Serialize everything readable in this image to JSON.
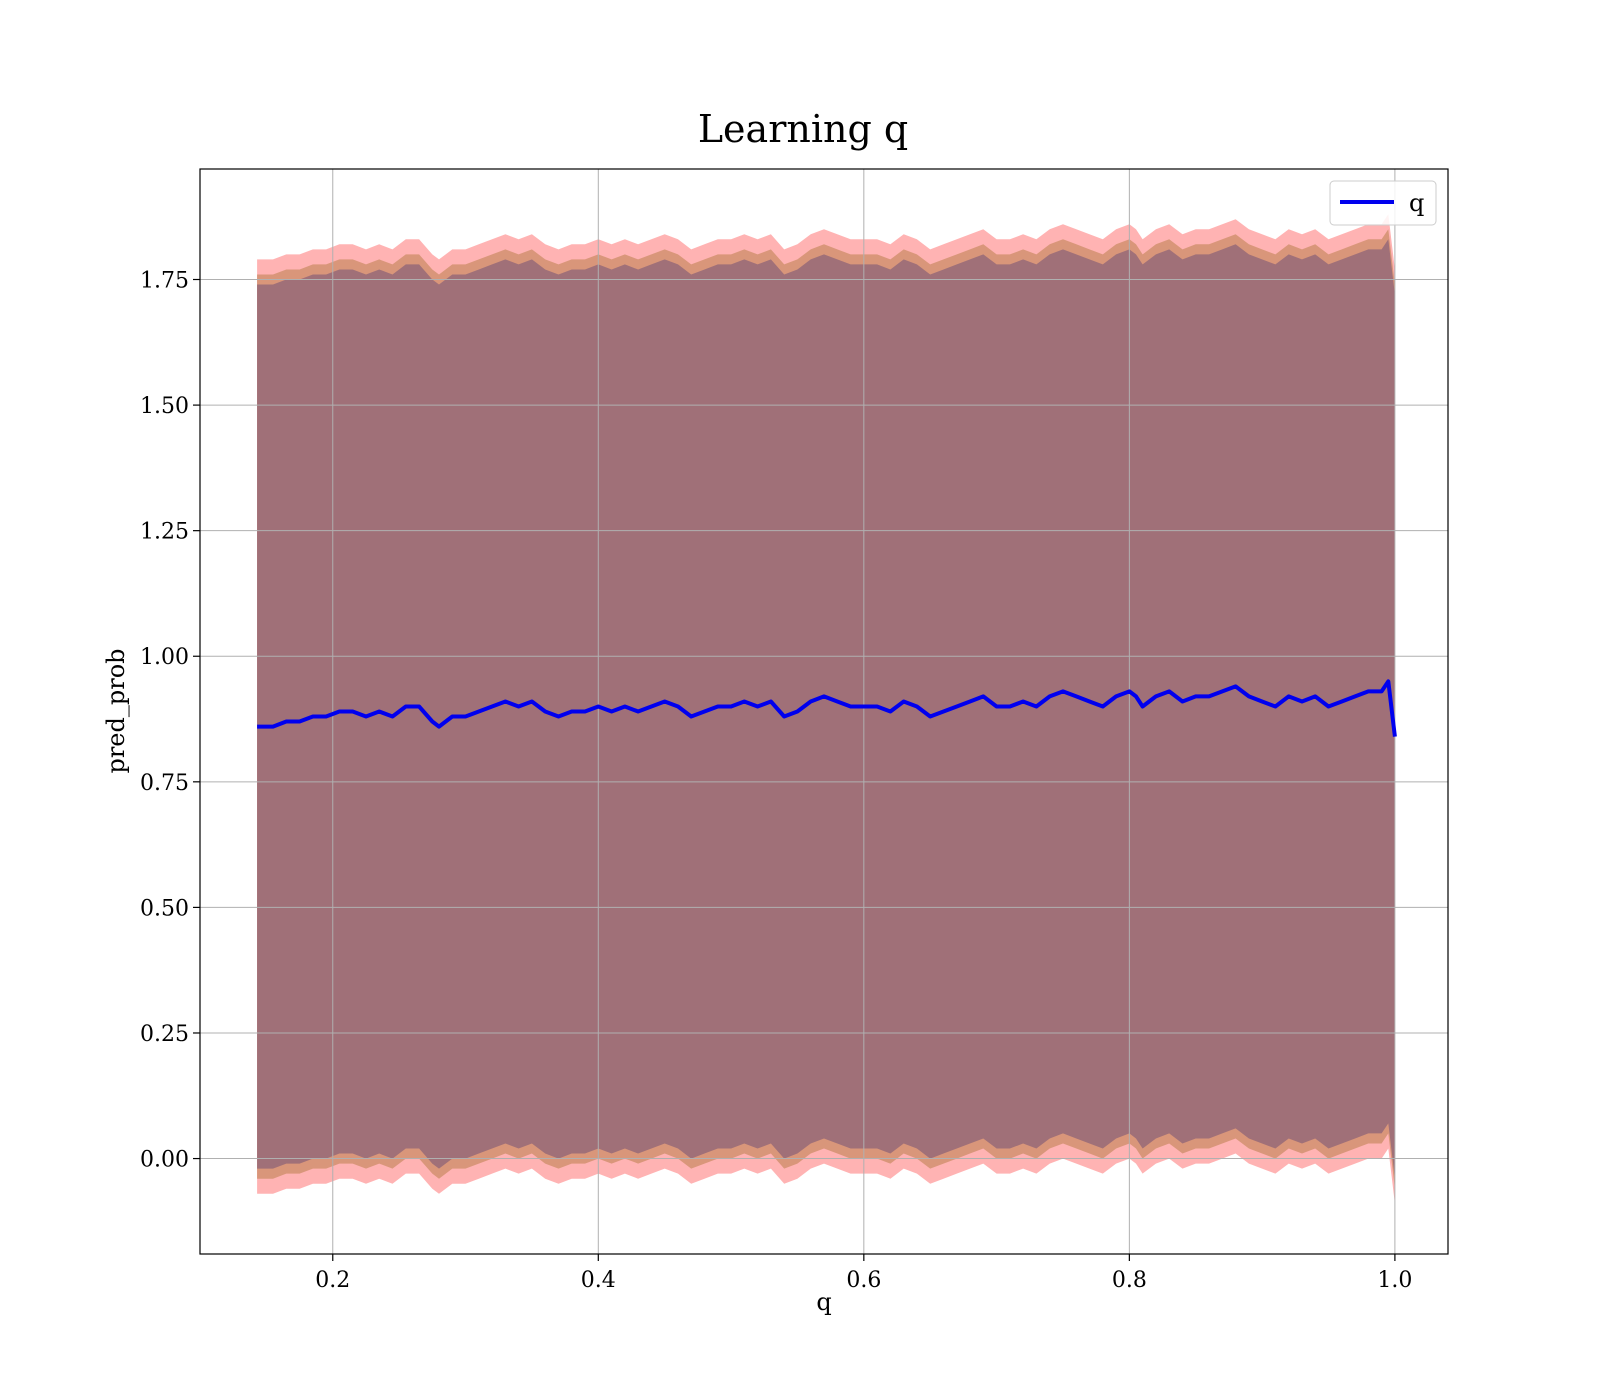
{
  "chart_data": {
    "type": "area",
    "title": "Learning q",
    "xlabel": "q",
    "ylabel": "pred_prob",
    "xlim": [
      0.1,
      1.04
    ],
    "ylim": [
      -0.19,
      1.97
    ],
    "xticks": [
      0.2,
      0.4,
      0.6,
      0.8,
      1.0
    ],
    "xtick_labels": [
      "0.2",
      "0.4",
      "0.6",
      "0.8",
      "1.0"
    ],
    "yticks": [
      0.0,
      0.25,
      0.5,
      0.75,
      1.0,
      1.25,
      1.5,
      1.75
    ],
    "ytick_labels": [
      "0.00",
      "0.25",
      "0.50",
      "0.75",
      "1.00",
      "1.25",
      "1.50",
      "1.75"
    ],
    "grid": true,
    "legend_position": "top-right",
    "colors": {
      "line": "#0000ee",
      "outer_band": "#ffb3b3",
      "middle_band": "#d9967a",
      "inner_band": "#a07078",
      "grid": "#b0b0b0"
    },
    "series": [
      {
        "name": "q",
        "x": [
          0.143,
          0.155,
          0.165,
          0.175,
          0.185,
          0.195,
          0.205,
          0.215,
          0.225,
          0.235,
          0.245,
          0.255,
          0.265,
          0.275,
          0.28,
          0.29,
          0.3,
          0.31,
          0.32,
          0.33,
          0.34,
          0.35,
          0.36,
          0.37,
          0.38,
          0.39,
          0.4,
          0.41,
          0.42,
          0.43,
          0.44,
          0.45,
          0.46,
          0.47,
          0.48,
          0.49,
          0.5,
          0.51,
          0.52,
          0.53,
          0.54,
          0.55,
          0.56,
          0.57,
          0.58,
          0.59,
          0.6,
          0.61,
          0.62,
          0.63,
          0.64,
          0.65,
          0.66,
          0.67,
          0.68,
          0.69,
          0.7,
          0.71,
          0.72,
          0.73,
          0.74,
          0.75,
          0.76,
          0.77,
          0.78,
          0.79,
          0.8,
          0.805,
          0.81,
          0.82,
          0.83,
          0.84,
          0.85,
          0.86,
          0.87,
          0.88,
          0.89,
          0.9,
          0.91,
          0.92,
          0.93,
          0.94,
          0.95,
          0.96,
          0.97,
          0.98,
          0.99,
          0.995,
          1.0
        ],
        "y": [
          0.86,
          0.86,
          0.87,
          0.87,
          0.88,
          0.88,
          0.89,
          0.89,
          0.88,
          0.89,
          0.88,
          0.9,
          0.9,
          0.87,
          0.86,
          0.88,
          0.88,
          0.89,
          0.9,
          0.91,
          0.9,
          0.91,
          0.89,
          0.88,
          0.89,
          0.89,
          0.9,
          0.89,
          0.9,
          0.89,
          0.9,
          0.91,
          0.9,
          0.88,
          0.89,
          0.9,
          0.9,
          0.91,
          0.9,
          0.91,
          0.88,
          0.89,
          0.91,
          0.92,
          0.91,
          0.9,
          0.9,
          0.9,
          0.89,
          0.91,
          0.9,
          0.88,
          0.89,
          0.9,
          0.91,
          0.92,
          0.9,
          0.9,
          0.91,
          0.9,
          0.92,
          0.93,
          0.92,
          0.91,
          0.9,
          0.92,
          0.93,
          0.92,
          0.9,
          0.92,
          0.93,
          0.91,
          0.92,
          0.92,
          0.93,
          0.94,
          0.92,
          0.91,
          0.9,
          0.92,
          0.91,
          0.92,
          0.9,
          0.91,
          0.92,
          0.93,
          0.93,
          0.95,
          0.84
        ]
      }
    ],
    "bands": [
      {
        "color_key": "outer_band",
        "lower_offset": -0.93,
        "upper_offset": 0.93
      },
      {
        "color_key": "middle_band",
        "lower_offset": -0.9,
        "upper_offset": 0.9
      },
      {
        "color_key": "inner_band",
        "lower_offset": -0.88,
        "upper_offset": 0.88
      }
    ]
  }
}
